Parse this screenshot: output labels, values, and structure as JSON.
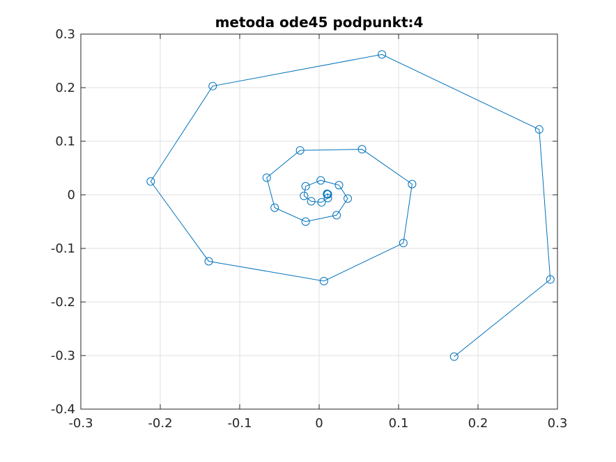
{
  "chart_data": {
    "type": "line",
    "title": "metoda ode45 podpunkt:4",
    "xlabel": "",
    "ylabel": "",
    "xlim": [
      -0.3,
      0.3
    ],
    "ylim": [
      -0.4,
      0.3
    ],
    "xticks": [
      -0.3,
      -0.2,
      -0.1,
      0,
      0.1,
      0.2,
      0.3
    ],
    "xtick_labels": [
      "-0.3",
      "-0.2",
      "-0.1",
      "0",
      "0.1",
      "0.2",
      "0.3"
    ],
    "yticks": [
      -0.4,
      -0.3,
      -0.2,
      -0.1,
      0,
      0.1,
      0.2,
      0.3
    ],
    "ytick_labels": [
      "-0.4",
      "-0.3",
      "-0.2",
      "-0.1",
      "0",
      "0.1",
      "0.2",
      "0.3"
    ],
    "grid": true,
    "marker": "circle",
    "line_color": "#0072BD",
    "series": [
      {
        "x": [
          0.17,
          0.291,
          0.277,
          0.079,
          -0.134,
          -0.212,
          -0.139,
          0.006,
          0.106,
          0.117,
          0.054,
          -0.024,
          -0.066,
          -0.056,
          -0.017,
          0.022,
          0.036,
          0.025,
          0.002,
          -0.017,
          -0.019,
          -0.01,
          0.003,
          0.011,
          0.011,
          0.01,
          0.01
        ],
        "y": [
          -0.302,
          -0.158,
          0.122,
          0.262,
          0.203,
          0.025,
          -0.124,
          -0.161,
          -0.09,
          0.02,
          0.085,
          0.083,
          0.032,
          -0.024,
          -0.05,
          -0.038,
          -0.007,
          0.018,
          0.027,
          0.016,
          -0.002,
          -0.012,
          -0.014,
          -0.006,
          0.001,
          0.002,
          0.001
        ]
      }
    ]
  }
}
